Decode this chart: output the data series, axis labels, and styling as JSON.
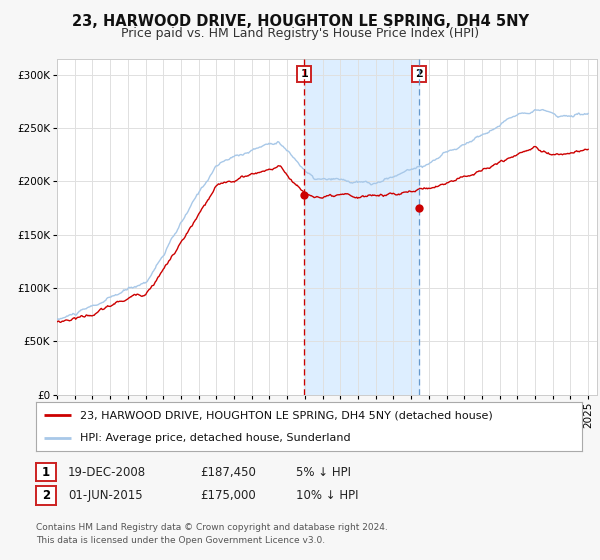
{
  "title": "23, HARWOOD DRIVE, HOUGHTON LE SPRING, DH4 5NY",
  "subtitle": "Price paid vs. HM Land Registry's House Price Index (HPI)",
  "ylabel_ticks": [
    "£0",
    "£50K",
    "£100K",
    "£150K",
    "£200K",
    "£250K",
    "£300K"
  ],
  "ytick_values": [
    0,
    50000,
    100000,
    150000,
    200000,
    250000,
    300000
  ],
  "ylim": [
    0,
    315000
  ],
  "xlim_start": 1995.0,
  "xlim_end": 2025.5,
  "hpi_color": "#a8c8e8",
  "sale_color": "#cc0000",
  "bg_color": "#f7f7f7",
  "plot_bg": "#ffffff",
  "shade_color": "#ddeeff",
  "event1_x": 2008.97,
  "event1_y": 187450,
  "event2_x": 2015.42,
  "event2_y": 175000,
  "legend_sale": "23, HARWOOD DRIVE, HOUGHTON LE SPRING, DH4 5NY (detached house)",
  "legend_hpi": "HPI: Average price, detached house, Sunderland",
  "table_row1": [
    "1",
    "19-DEC-2008",
    "£187,450",
    "5% ↓ HPI"
  ],
  "table_row2": [
    "2",
    "01-JUN-2015",
    "£175,000",
    "10% ↓ HPI"
  ],
  "footnote1": "Contains HM Land Registry data © Crown copyright and database right 2024.",
  "footnote2": "This data is licensed under the Open Government Licence v3.0.",
  "title_fontsize": 10.5,
  "subtitle_fontsize": 9,
  "tick_fontsize": 7.5,
  "legend_fontsize": 8,
  "table_fontsize": 8.5,
  "footnote_fontsize": 6.5
}
